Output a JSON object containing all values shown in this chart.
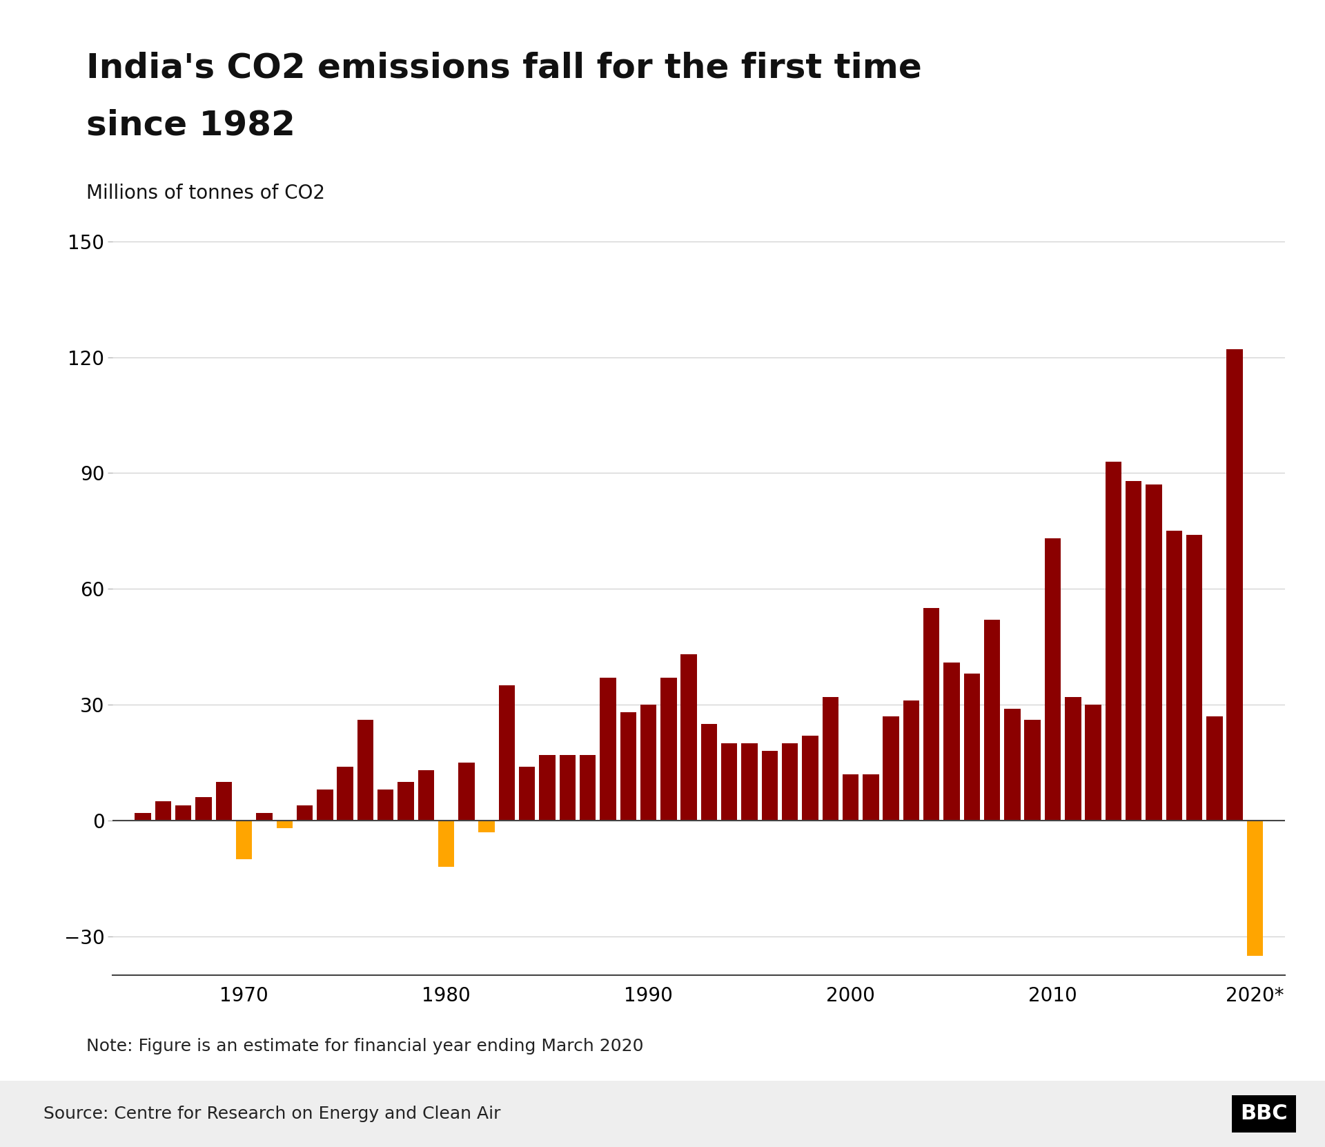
{
  "title_line1": "India's CO2 emissions fall for the first time",
  "title_line2": "since 1982",
  "ylabel": "Millions of tonnes of CO2",
  "note": "Note: Figure is an estimate for financial year ending March 2020",
  "source": "Source: Centre for Research on Energy and Clean Air",
  "bbc_logo": "BBC",
  "years": [
    1965,
    1966,
    1967,
    1968,
    1969,
    1970,
    1971,
    1972,
    1973,
    1974,
    1975,
    1976,
    1977,
    1978,
    1979,
    1980,
    1981,
    1982,
    1983,
    1984,
    1985,
    1986,
    1987,
    1988,
    1989,
    1990,
    1991,
    1992,
    1993,
    1994,
    1995,
    1996,
    1997,
    1998,
    1999,
    2000,
    2001,
    2002,
    2003,
    2004,
    2005,
    2006,
    2007,
    2008,
    2009,
    2010,
    2011,
    2012,
    2013,
    2014,
    2015,
    2016,
    2017,
    2018,
    2019,
    2020
  ],
  "values": [
    2,
    5,
    4,
    6,
    10,
    -10,
    2,
    -2,
    4,
    8,
    14,
    26,
    8,
    10,
    13,
    -12,
    15,
    -3,
    35,
    14,
    17,
    17,
    17,
    37,
    28,
    30,
    37,
    43,
    25,
    20,
    20,
    18,
    20,
    22,
    32,
    12,
    12,
    27,
    31,
    55,
    41,
    38,
    52,
    29,
    26,
    73,
    32,
    30,
    93,
    88,
    87,
    75,
    74,
    27,
    122,
    -35
  ],
  "positive_color": "#8B0000",
  "negative_color": "#FFA500",
  "background_color": "#FFFFFF",
  "source_bar_color": "#eeeeee",
  "ylim": [
    -40,
    162
  ],
  "yticks": [
    -30,
    0,
    30,
    60,
    90,
    120,
    150
  ],
  "xticks": [
    1970,
    1980,
    1990,
    2000,
    2010,
    2020
  ],
  "xticklabels": [
    "1970",
    "1980",
    "1990",
    "2000",
    "2010",
    "2020*"
  ],
  "xlim": [
    1963.5,
    2021.5
  ],
  "bar_width": 0.8,
  "title_fontsize": 36,
  "ylabel_fontsize": 20,
  "tick_fontsize": 20,
  "note_fontsize": 18,
  "source_fontsize": 18,
  "bbc_fontsize": 22
}
